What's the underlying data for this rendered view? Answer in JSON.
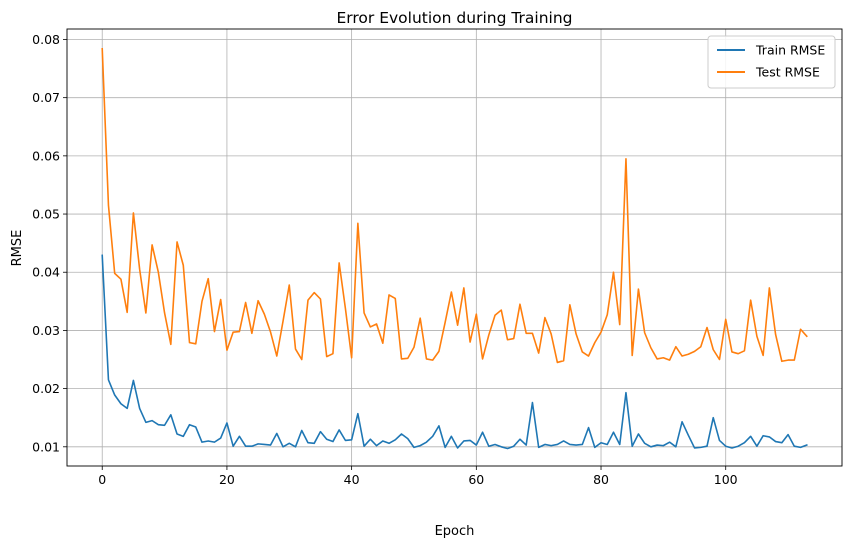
{
  "chart_data": {
    "type": "line",
    "title": "Error Evolution during Training",
    "xlabel": "Epoch",
    "ylabel": "RMSE",
    "xlim": [
      -5.65,
      118.65
    ],
    "ylim": [
      0.0067,
      0.0818
    ],
    "xticks": [
      0,
      20,
      40,
      60,
      80,
      100
    ],
    "xtick_labels": [
      "0",
      "20",
      "40",
      "60",
      "80",
      "100"
    ],
    "yticks": [
      0.01,
      0.02,
      0.03,
      0.04,
      0.05,
      0.06,
      0.07,
      0.08
    ],
    "ytick_labels": [
      "0.01",
      "0.02",
      "0.03",
      "0.04",
      "0.05",
      "0.06",
      "0.07",
      "0.08"
    ],
    "grid": true,
    "legend_position": "top-right",
    "series": [
      {
        "name": "Train RMSE",
        "color": "#1f77b4",
        "values": [
          0.0429,
          0.0215,
          0.0189,
          0.0174,
          0.0166,
          0.0214,
          0.0166,
          0.0142,
          0.0145,
          0.0138,
          0.0137,
          0.0155,
          0.0122,
          0.0118,
          0.0138,
          0.0134,
          0.0108,
          0.011,
          0.0108,
          0.0115,
          0.0141,
          0.0101,
          0.0118,
          0.0101,
          0.0101,
          0.0105,
          0.0104,
          0.0103,
          0.0123,
          0.01,
          0.0106,
          0.01,
          0.0128,
          0.0107,
          0.0106,
          0.0126,
          0.0113,
          0.0109,
          0.0129,
          0.0111,
          0.0112,
          0.0157,
          0.0101,
          0.0113,
          0.0102,
          0.011,
          0.0106,
          0.0112,
          0.0122,
          0.0114,
          0.0099,
          0.0102,
          0.0108,
          0.0118,
          0.0136,
          0.0099,
          0.0118,
          0.0098,
          0.011,
          0.0111,
          0.0103,
          0.0125,
          0.0101,
          0.0104,
          0.01,
          0.0097,
          0.0101,
          0.0113,
          0.0103,
          0.0176,
          0.0099,
          0.0104,
          0.0102,
          0.0104,
          0.011,
          0.0104,
          0.0103,
          0.0104,
          0.0133,
          0.0099,
          0.0107,
          0.0104,
          0.0125,
          0.0104,
          0.0193,
          0.0101,
          0.0122,
          0.0106,
          0.01,
          0.0103,
          0.0102,
          0.0108,
          0.01,
          0.0143,
          0.012,
          0.0098,
          0.0099,
          0.0101,
          0.015,
          0.0111,
          0.0101,
          0.0098,
          0.0101,
          0.0107,
          0.0118,
          0.0101,
          0.0119,
          0.0117,
          0.0109,
          0.0107,
          0.0121,
          0.0101,
          0.0099,
          0.0103
        ]
      },
      {
        "name": "Test RMSE",
        "color": "#ff7f0e",
        "values": [
          0.0784,
          0.0515,
          0.0398,
          0.0388,
          0.0331,
          0.0502,
          0.0405,
          0.033,
          0.0447,
          0.04,
          0.033,
          0.0276,
          0.0452,
          0.0412,
          0.0279,
          0.0277,
          0.035,
          0.0389,
          0.0298,
          0.0353,
          0.0266,
          0.0297,
          0.0298,
          0.0348,
          0.0295,
          0.0351,
          0.0328,
          0.0297,
          0.0256,
          0.0316,
          0.0378,
          0.0268,
          0.025,
          0.0352,
          0.0365,
          0.0354,
          0.0255,
          0.026,
          0.0416,
          0.0338,
          0.0253,
          0.0484,
          0.033,
          0.0306,
          0.0311,
          0.0278,
          0.0361,
          0.0355,
          0.0251,
          0.0252,
          0.0271,
          0.0321,
          0.0251,
          0.0249,
          0.0264,
          0.0314,
          0.0366,
          0.0309,
          0.0373,
          0.028,
          0.0328,
          0.0251,
          0.0292,
          0.0326,
          0.0335,
          0.0284,
          0.0286,
          0.0345,
          0.0295,
          0.0295,
          0.0261,
          0.0322,
          0.0294,
          0.0245,
          0.0248,
          0.0344,
          0.0294,
          0.0263,
          0.0256,
          0.0279,
          0.0297,
          0.0327,
          0.04,
          0.031,
          0.0595,
          0.0257,
          0.0371,
          0.0296,
          0.027,
          0.0251,
          0.0253,
          0.0249,
          0.0272,
          0.0256,
          0.0259,
          0.0264,
          0.0272,
          0.0305,
          0.0267,
          0.025,
          0.0319,
          0.0263,
          0.026,
          0.0265,
          0.0352,
          0.029,
          0.0257,
          0.0373,
          0.0293,
          0.0247,
          0.0249,
          0.0249,
          0.0302,
          0.029
        ]
      }
    ]
  }
}
